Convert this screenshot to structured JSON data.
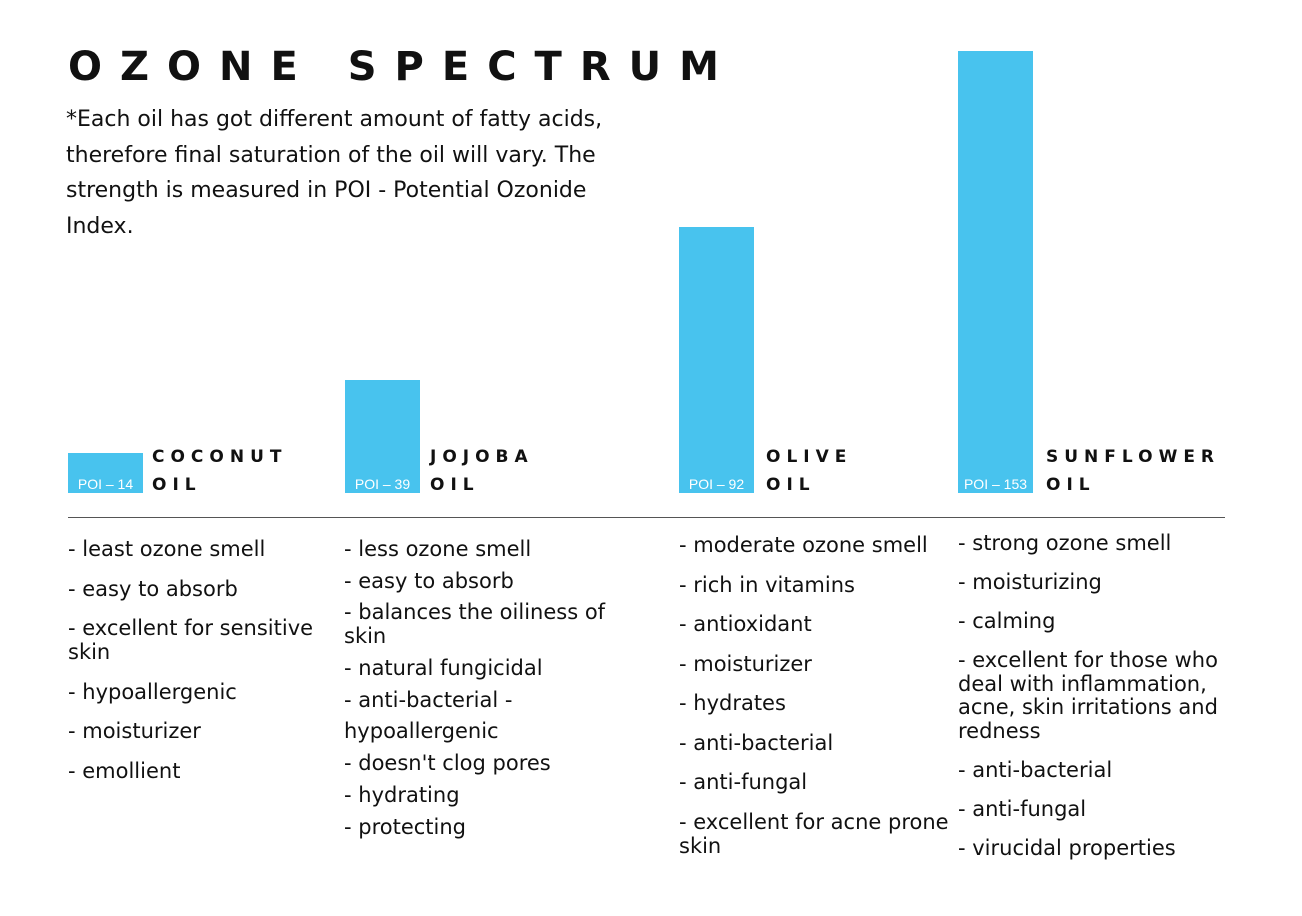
{
  "title": "OZONE SPECTRUM",
  "subtitle": "*Each oil has got different amount of fatty acids, therefore final saturation of the oil will vary. The strength is measured in POI - Potential Ozonide Index.",
  "colors": {
    "bar": "#48c3ee",
    "text": "#111111",
    "divider": "#555555"
  },
  "chart_data": {
    "type": "bar",
    "title": "OZONE SPECTRUM",
    "categories": [
      "COCONUT OIL",
      "JOJOBA OIL",
      "OLIVE OIL",
      "SUNFLOWER OIL"
    ],
    "values": [
      14,
      39,
      92,
      153
    ],
    "value_labels": [
      "POI – 14",
      "POI – 39",
      "POI – 92",
      "POI – 153"
    ],
    "name_lines": [
      [
        "COCONUT",
        "OIL"
      ],
      [
        "JOJOBA",
        "OIL"
      ],
      [
        "OLIVE",
        "OIL"
      ],
      [
        "SUNFLOWER",
        "OIL"
      ]
    ],
    "xlabel": "",
    "ylabel": "",
    "grid": false
  },
  "properties": [
    [
      "- least ozone smell",
      "- easy to absorb",
      "- excellent for sensitive skin",
      "- hypoallergenic",
      "- moisturizer",
      "- emollient"
    ],
    [
      "- less ozone smell",
      "- easy to absorb",
      "- balances the oiliness of skin",
      "- natural fungicidal",
      "- anti-bacterial -",
      "hypoallergenic",
      "- doesn't clog pores",
      "- hydrating",
      "- protecting"
    ],
    [
      "- moderate ozone smell",
      "- rich in vitamins",
      "- antioxidant",
      "- moisturizer",
      "- hydrates",
      "- anti-bacterial",
      "- anti-fungal",
      "- excellent for acne prone skin"
    ],
    [
      "- strong ozone smell",
      "- moisturizing",
      "- calming",
      "- excellent for those who deal with inflammation, acne, skin irritations and redness",
      "- anti-bacterial",
      "- anti-fungal",
      "- virucidal properties"
    ]
  ]
}
